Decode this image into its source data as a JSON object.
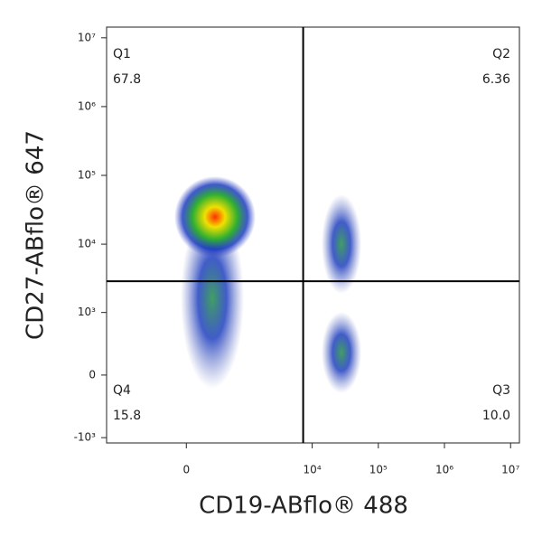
{
  "chart_data": {
    "type": "quadrant-scatter",
    "xlabel": "CD19-ABflo® 488",
    "ylabel": "CD27-ABflo® 647",
    "xscale": "biexponential",
    "yscale": "biexponential",
    "xlim": [
      -2000,
      13600000
    ],
    "ylim": [
      -1200,
      14300000
    ],
    "xticks": [
      {
        "value": 0,
        "label": "0"
      },
      {
        "value": 10000,
        "label": "10⁴"
      },
      {
        "value": 100000,
        "label": "10⁵"
      },
      {
        "value": 1000000,
        "label": "10⁶"
      },
      {
        "value": 10000000,
        "label": "10⁷"
      }
    ],
    "yticks": [
      {
        "value": -1000,
        "label": "-10³"
      },
      {
        "value": 0,
        "label": "0"
      },
      {
        "value": 1000,
        "label": "10³"
      },
      {
        "value": 10000,
        "label": "10⁴"
      },
      {
        "value": 100000,
        "label": "10⁵"
      },
      {
        "value": 1000000,
        "label": "10⁶"
      },
      {
        "value": 10000000,
        "label": "10⁷"
      }
    ],
    "gate": {
      "x": 7300,
      "y": 2880
    },
    "quadrants": [
      {
        "name": "Q1",
        "value": 67.8,
        "corner": "top-left"
      },
      {
        "name": "Q2",
        "value": 6.36,
        "corner": "top-right"
      },
      {
        "name": "Q3",
        "value": 10,
        "value_label": "10.0",
        "corner": "bottom-right"
      },
      {
        "name": "Q4",
        "value": 15.8,
        "corner": "bottom-left"
      }
    ]
  }
}
